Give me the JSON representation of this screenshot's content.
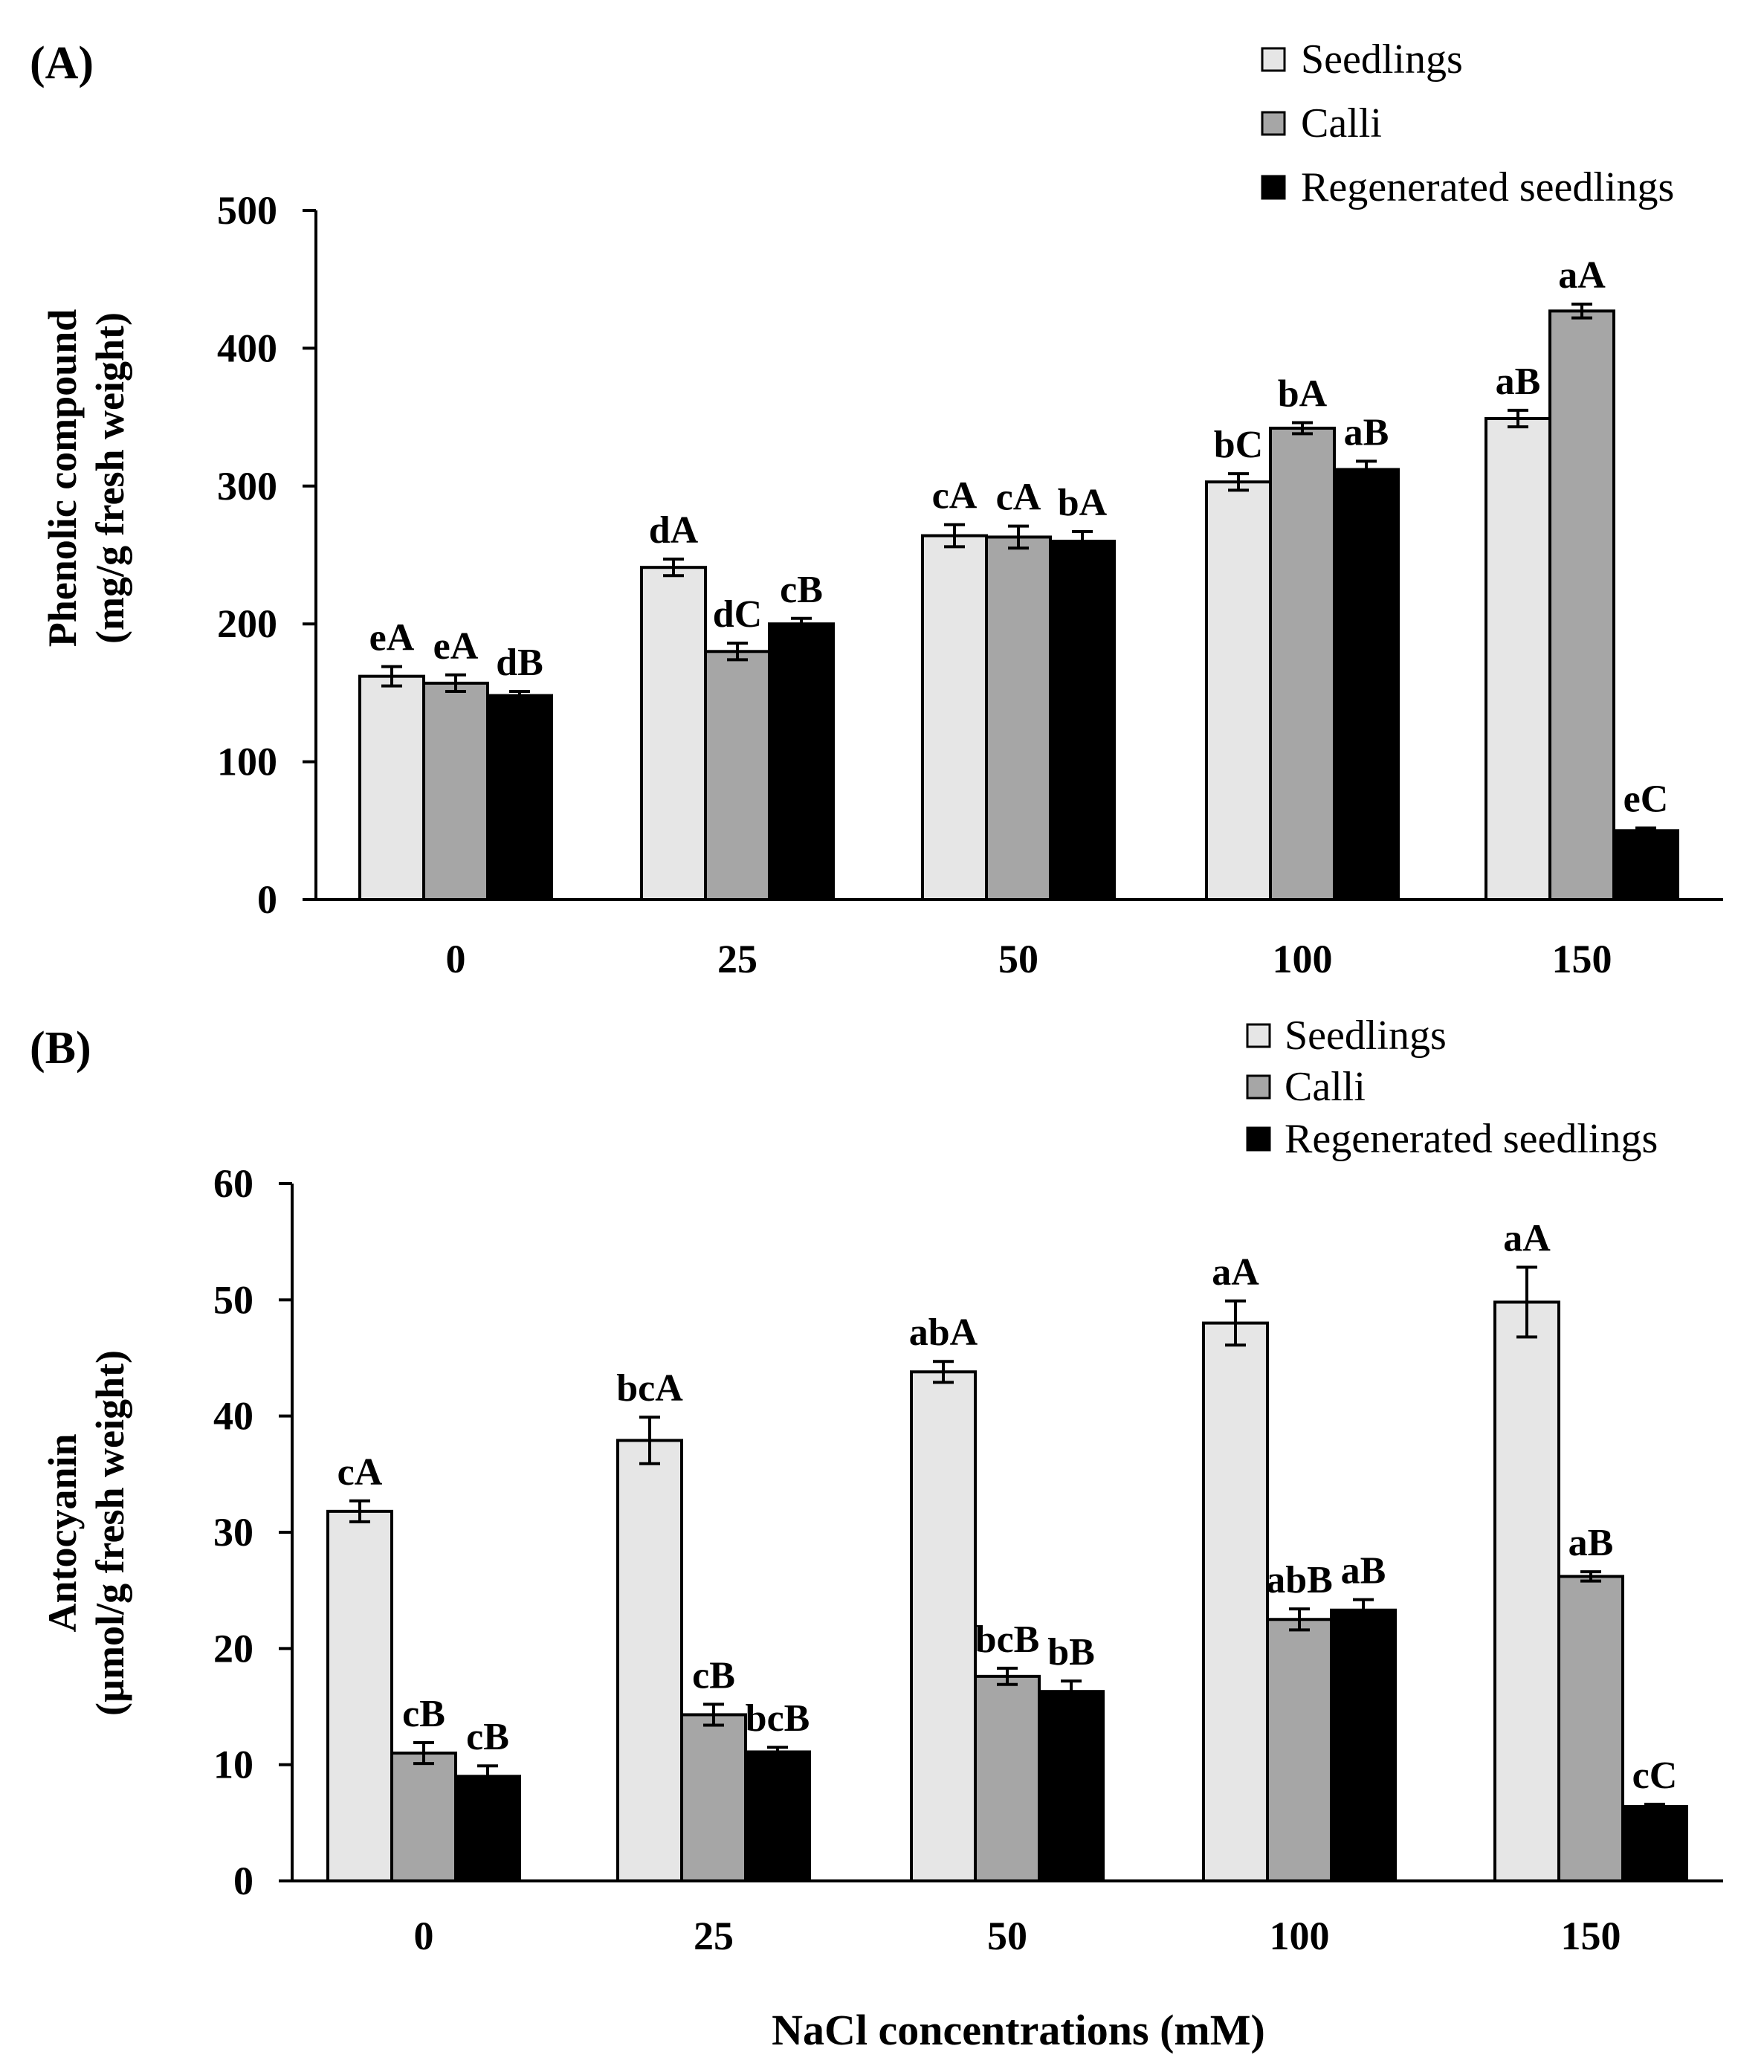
{
  "colors": {
    "seedlings": "#e6e6e6",
    "calli": "#a6a6a6",
    "regenerated": "#000000",
    "axis": "#000000"
  },
  "chart_data": [
    {
      "type": "bar",
      "panel_label": "(A)",
      "ylabel_line1": "Phenolic compound",
      "ylabel_line2": "(mg/g fresh weight)",
      "xlabel": "",
      "ylim": [
        0,
        500
      ],
      "yticks": [
        "0",
        "100",
        "200",
        "300",
        "400",
        "500"
      ],
      "categories": [
        "0",
        "25",
        "50",
        "100",
        "150"
      ],
      "legend": [
        "Seedlings",
        "Calli",
        "Regenerated seedlings"
      ],
      "legend_position": "top-right",
      "series": [
        {
          "name": "Seedlings",
          "values": [
            162,
            241,
            264,
            303,
            349
          ],
          "errors": [
            7,
            6,
            8,
            6,
            6
          ],
          "labels": [
            "eA",
            "dA",
            "cA",
            "bC",
            "aB"
          ]
        },
        {
          "name": "Calli",
          "values": [
            157,
            180,
            263,
            342,
            427
          ],
          "errors": [
            6,
            6,
            8,
            4,
            5
          ],
          "labels": [
            "eA",
            "dC",
            "cA",
            "bA",
            "aA"
          ]
        },
        {
          "name": "Regenerated seedlings",
          "values": [
            148,
            200,
            260,
            312,
            50
          ],
          "errors": [
            3,
            4,
            7,
            6,
            2
          ],
          "labels": [
            "dB",
            "cB",
            "bA",
            "aB",
            "eC"
          ]
        }
      ],
      "grid": false
    },
    {
      "type": "bar",
      "panel_label": "(B)",
      "ylabel_line1": "Antocyanin",
      "ylabel_line2": "(µmol/g fresh weight)",
      "xlabel": "NaCl concentrations (mM)",
      "ylim": [
        0,
        60
      ],
      "yticks": [
        "0",
        "10",
        "20",
        "30",
        "40",
        "50",
        "60"
      ],
      "categories": [
        "0",
        "25",
        "50",
        "100",
        "150"
      ],
      "legend": [
        "Seedlings",
        "Calli",
        "Regenerated seedlings"
      ],
      "legend_position": "top-right",
      "series": [
        {
          "name": "Seedlings",
          "values": [
            31.8,
            37.9,
            43.8,
            48,
            49.8
          ],
          "errors": [
            0.9,
            2,
            0.9,
            1.9,
            3
          ],
          "labels": [
            "cA",
            "bcA",
            "abA",
            "aA",
            "aA"
          ]
        },
        {
          "name": "Calli",
          "values": [
            11,
            14.3,
            17.6,
            22.5,
            26.2
          ],
          "errors": [
            0.9,
            0.9,
            0.7,
            0.9,
            0.4
          ],
          "labels": [
            "cB",
            "cB",
            "bcB",
            "abB",
            "aB"
          ]
        },
        {
          "name": "Regenerated seedlings",
          "values": [
            9,
            11.1,
            16.3,
            23.3,
            6.4
          ],
          "errors": [
            0.9,
            0.4,
            0.9,
            0.9,
            0.2
          ],
          "labels": [
            "cB",
            "bcB",
            "bB",
            "aB",
            "cC"
          ]
        }
      ],
      "grid": false
    }
  ]
}
